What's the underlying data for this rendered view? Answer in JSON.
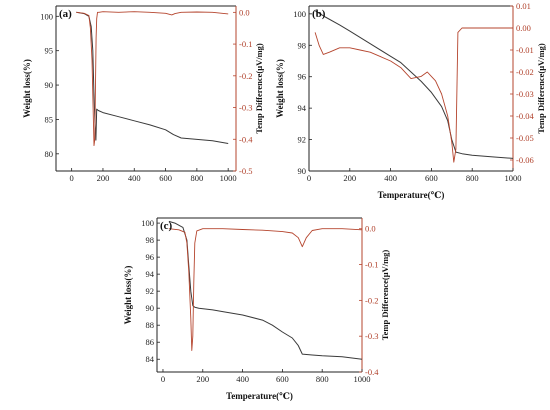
{
  "chart_data": [
    {
      "panel": "(a)",
      "type": "line",
      "xlabel": "",
      "ylabel": "Weight loss(%)",
      "y2label": "Temp Difference(μV/mg)",
      "xlim": [
        -100,
        1050
      ],
      "ylim": [
        77.5,
        101.5
      ],
      "y2lim": [
        -0.5,
        0.02
      ],
      "xticks": [
        "0",
        "200",
        "400",
        "600",
        "800",
        "1000"
      ],
      "yticks": [
        "80",
        "85",
        "90",
        "95",
        "100"
      ],
      "y2ticks": [
        "0.0",
        "-0.1",
        "-0.2",
        "-0.3",
        "-0.4",
        "-0.5"
      ],
      "colors": {
        "weight": "#3a3a3a",
        "temp": "#b5452e"
      },
      "series": [
        {
          "axis": "left",
          "x": [
            30,
            80,
            110,
            125,
            135,
            142,
            150,
            155,
            160,
            170,
            200,
            300,
            400,
            500,
            600,
            650,
            700,
            800,
            900,
            1000
          ],
          "y": [
            100.6,
            100.4,
            100.0,
            98.5,
            95.0,
            89.0,
            84.0,
            82.0,
            86.5,
            86.3,
            86.0,
            85.4,
            84.8,
            84.2,
            83.5,
            82.8,
            82.3,
            82.1,
            81.9,
            81.5
          ]
        },
        {
          "axis": "right",
          "x": [
            30,
            80,
            110,
            120,
            130,
            137,
            143,
            148,
            152,
            156,
            160,
            165,
            175,
            200,
            300,
            400,
            500,
            600,
            640,
            660,
            700,
            800,
            900,
            1000
          ],
          "y": [
            0.0,
            -0.003,
            -0.01,
            -0.05,
            -0.15,
            -0.3,
            -0.42,
            -0.4,
            -0.25,
            -0.08,
            -0.02,
            0.0,
            0.0,
            0.002,
            0.0,
            0.002,
            0.0,
            -0.003,
            -0.008,
            -0.004,
            0.0,
            0.001,
            0.0,
            -0.005
          ]
        }
      ]
    },
    {
      "panel": "(b)",
      "type": "line",
      "xlabel": "Temperature(℃)",
      "ylabel": "Weight loss(%)",
      "y2label": "Temp Difference(μV/mg)",
      "xlim": [
        0,
        1000
      ],
      "ylim": [
        90,
        100.5
      ],
      "y2lim": [
        -0.065,
        0.01
      ],
      "xticks": [
        "0",
        "200",
        "400",
        "600",
        "800",
        "1000"
      ],
      "yticks": [
        "90",
        "92",
        "94",
        "96",
        "98",
        "100"
      ],
      "y2ticks": [
        "0.01",
        "0.00",
        "-0.01",
        "-0.02",
        "-0.03",
        "-0.04",
        "-0.05",
        "-0.06"
      ],
      "colors": {
        "weight": "#3a3a3a",
        "temp": "#b5452e"
      },
      "series": [
        {
          "axis": "left",
          "x": [
            30,
            80,
            150,
            200,
            300,
            400,
            450,
            500,
            550,
            600,
            650,
            680,
            700,
            720,
            750,
            800,
            900,
            1000
          ],
          "y": [
            100.2,
            99.8,
            99.3,
            98.9,
            98.1,
            97.3,
            96.9,
            96.3,
            95.7,
            95.0,
            94.1,
            93.2,
            92.0,
            91.2,
            91.1,
            91.0,
            90.9,
            90.8
          ]
        },
        {
          "axis": "right",
          "x": [
            30,
            50,
            70,
            100,
            150,
            200,
            250,
            300,
            350,
            400,
            450,
            480,
            500,
            550,
            580,
            600,
            620,
            650,
            680,
            700,
            710,
            720,
            730,
            750,
            800,
            900,
            1000
          ],
          "y": [
            -0.002,
            -0.008,
            -0.012,
            -0.011,
            -0.009,
            -0.009,
            -0.01,
            -0.011,
            -0.013,
            -0.015,
            -0.018,
            -0.021,
            -0.023,
            -0.022,
            -0.02,
            -0.022,
            -0.024,
            -0.03,
            -0.04,
            -0.052,
            -0.061,
            -0.055,
            -0.002,
            0.0,
            0.0,
            0.0,
            0.0
          ]
        }
      ]
    },
    {
      "panel": "(c)",
      "type": "line",
      "xlabel": "Temperature(℃)",
      "ylabel": "Weight loss(%)",
      "y2label": "Temp Difference(μV/mg)",
      "xlim": [
        -30,
        1000
      ],
      "ylim": [
        82.5,
        100.6
      ],
      "y2lim": [
        -0.4,
        0.03
      ],
      "xticks": [
        "0",
        "200",
        "400",
        "600",
        "800",
        "1000"
      ],
      "yticks": [
        "84",
        "86",
        "88",
        "90",
        "92",
        "94",
        "96",
        "98",
        "100"
      ],
      "y2ticks": [
        "0.0",
        "-0.1",
        "-0.2",
        "-0.3",
        "-0.4"
      ],
      "colors": {
        "weight": "#3a3a3a",
        "temp": "#b5452e"
      },
      "series": [
        {
          "axis": "left",
          "x": [
            30,
            60,
            100,
            120,
            130,
            140,
            150,
            160,
            180,
            250,
            300,
            400,
            500,
            550,
            600,
            650,
            680,
            700,
            750,
            800,
            900,
            1000
          ],
          "y": [
            100.2,
            100.0,
            99.5,
            98.0,
            95.0,
            92.0,
            90.3,
            90.1,
            90.0,
            89.8,
            89.6,
            89.2,
            88.6,
            88.0,
            87.2,
            86.5,
            85.6,
            84.6,
            84.5,
            84.4,
            84.3,
            84.0
          ]
        },
        {
          "axis": "right",
          "x": [
            30,
            80,
            110,
            120,
            130,
            140,
            145,
            150,
            155,
            160,
            170,
            200,
            300,
            400,
            500,
            600,
            650,
            680,
            700,
            720,
            750,
            800,
            900,
            1000
          ],
          "y": [
            0.0,
            -0.003,
            -0.01,
            -0.04,
            -0.12,
            -0.25,
            -0.34,
            -0.3,
            -0.15,
            -0.04,
            -0.006,
            0.0,
            0.0,
            -0.002,
            -0.004,
            -0.008,
            -0.012,
            -0.025,
            -0.05,
            -0.025,
            -0.005,
            0.0,
            0.0,
            -0.003
          ]
        }
      ]
    }
  ]
}
